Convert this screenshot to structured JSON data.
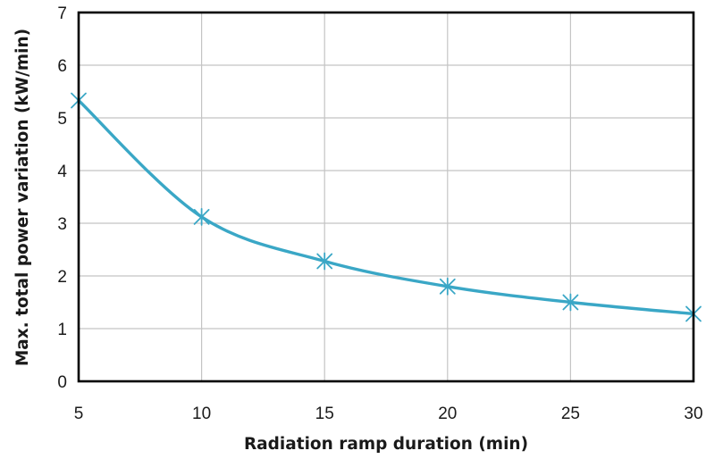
{
  "chart_data": {
    "type": "line",
    "xlabel": "Radiation ramp duration (min)",
    "ylabel": "Max. total  power variation (kW/min)",
    "x": [
      5,
      10,
      15,
      20,
      25,
      30
    ],
    "series": [
      {
        "values": [
          5.33,
          3.12,
          2.28,
          1.8,
          1.5,
          1.28
        ]
      }
    ],
    "xlim": [
      5,
      30
    ],
    "ylim": [
      0,
      7
    ],
    "x_ticks": [
      "5",
      "10",
      "15",
      "20",
      "25",
      "30"
    ],
    "y_ticks": [
      "0",
      "1",
      "2",
      "3",
      "4",
      "5",
      "6",
      "7"
    ],
    "grid": true,
    "legend": "none",
    "marker": "asterisk",
    "line_style": "smoothed",
    "colors": {
      "series": "#3aa7c6",
      "grid": "#c4c4c4",
      "frame": "#000000"
    }
  }
}
